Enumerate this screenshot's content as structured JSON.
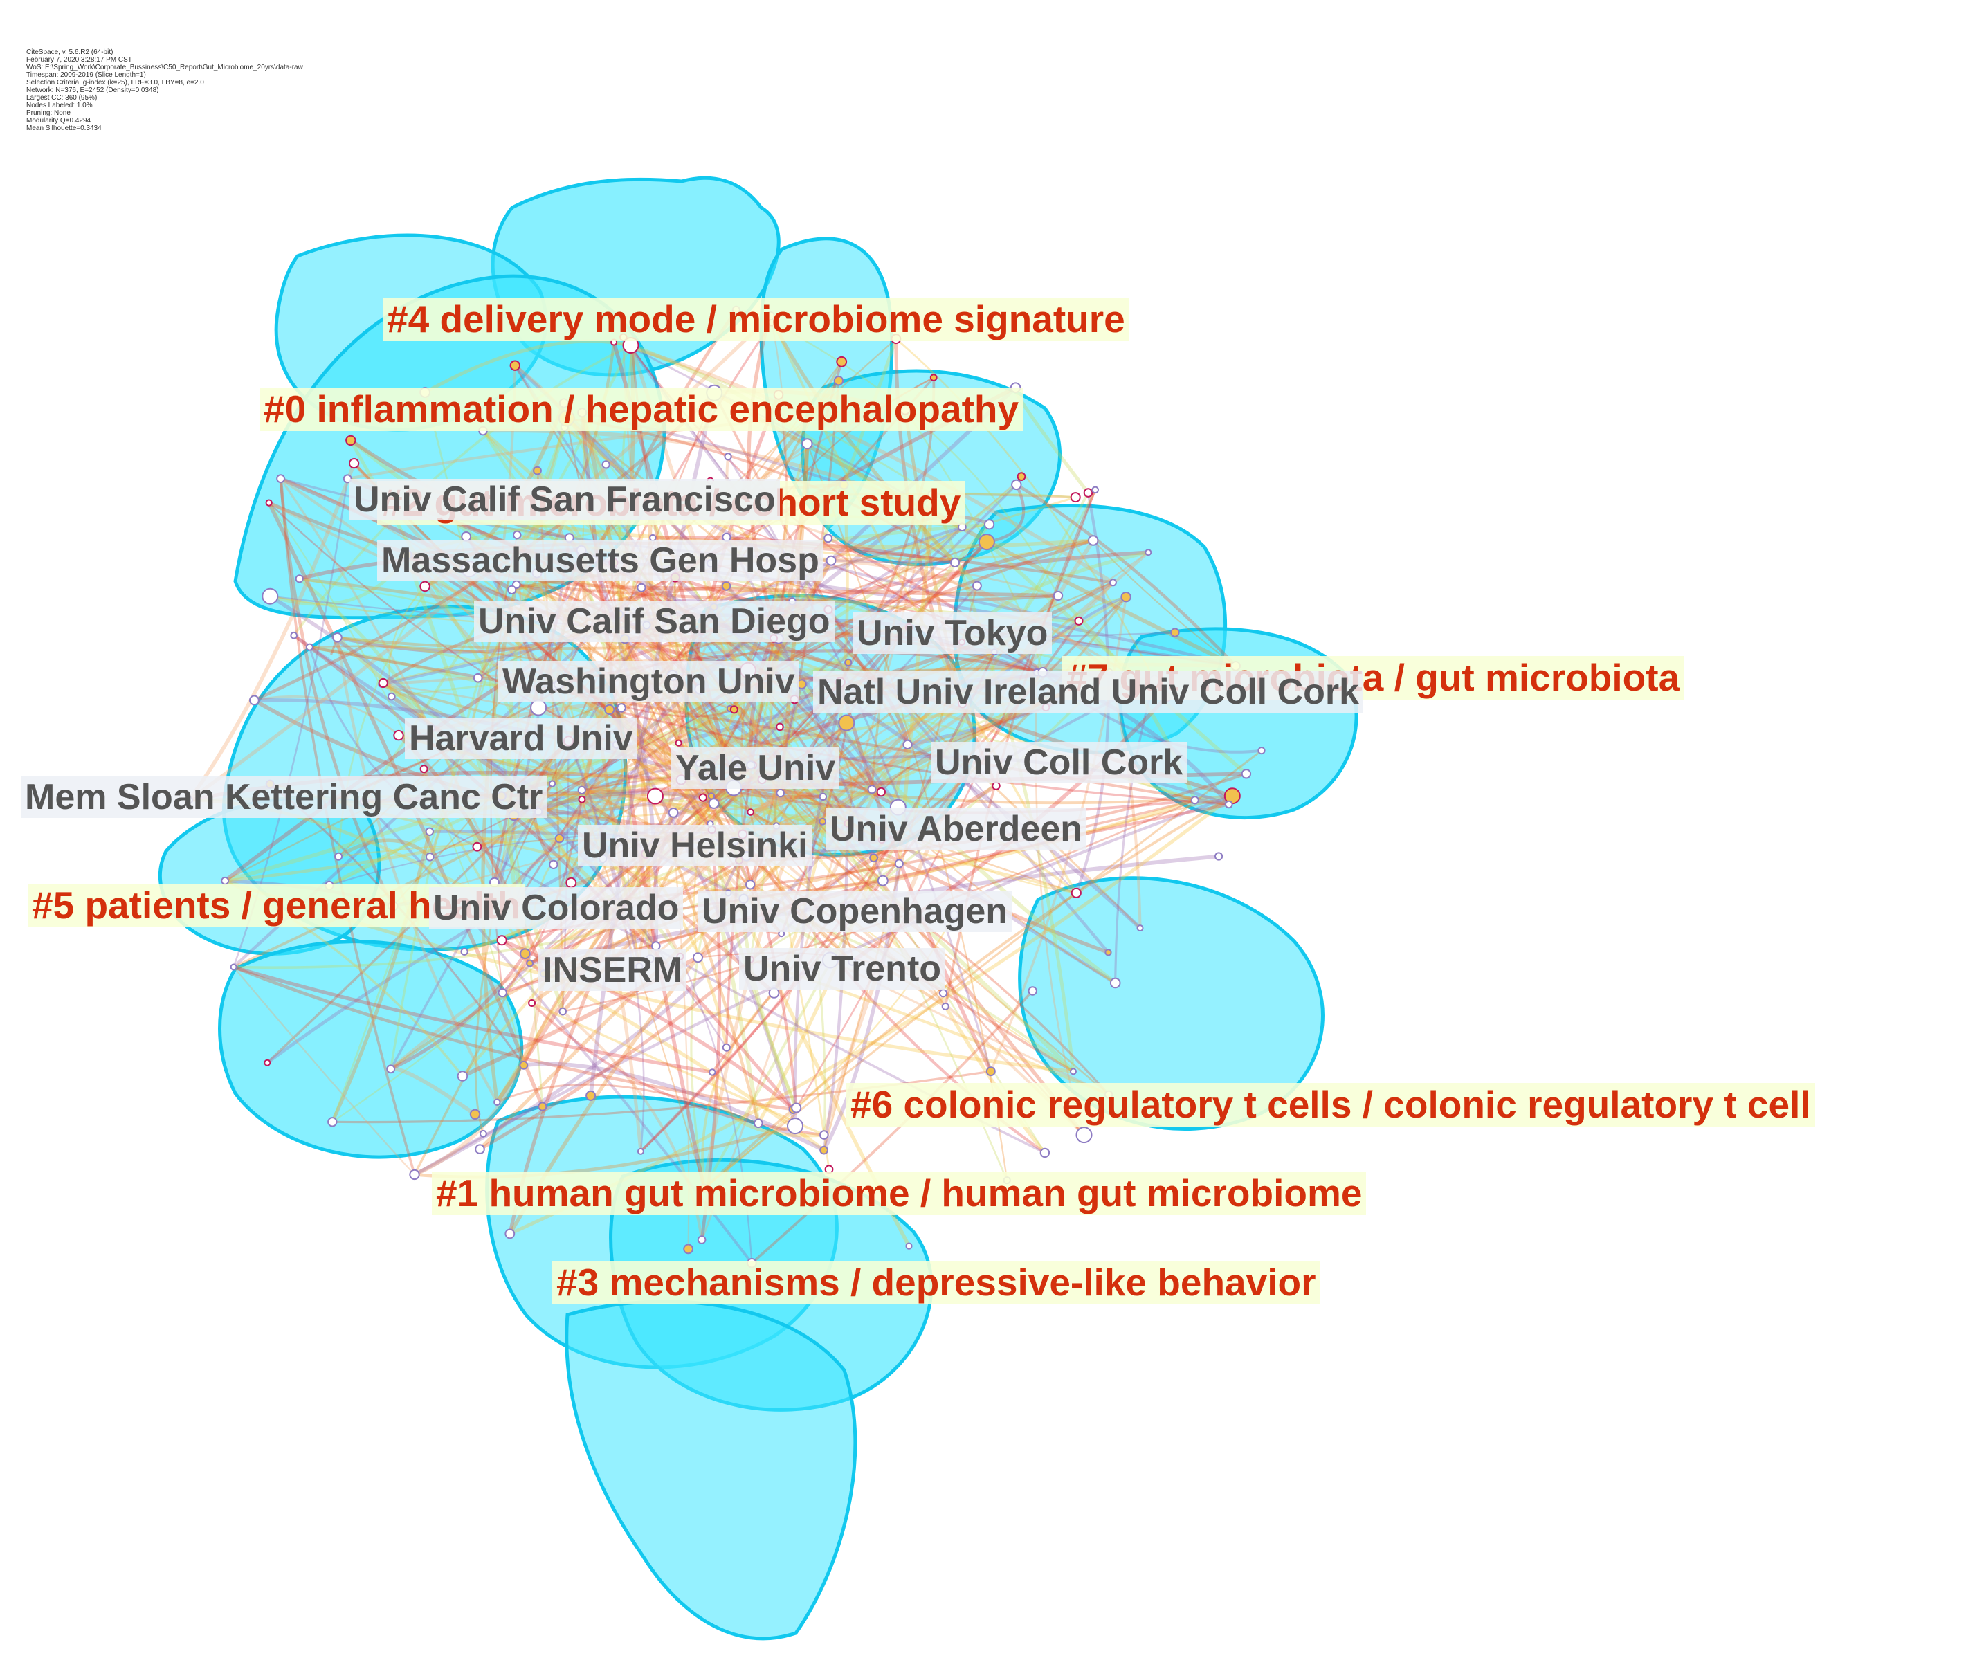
{
  "meta": [
    "CiteSpace, v. 5.6.R2 (64-bit)",
    "February 7, 2020 3:28:17 PM CST",
    "WoS: E:\\Spring_Work\\Corporate_Bussiness\\C50_Report\\Gut_Microbiome_20yrs\\data-raw",
    "Timespan: 2009-2019 (Slice Length=1)",
    "Selection Criteria: g-index (k=25), LRF=3.0, LBY=8, e=2.0",
    "Network: N=376, E=2452 (Density=0.0348)",
    "Largest CC: 360 (95%)",
    "Nodes Labeled: 1.0%",
    "Pruning: None",
    "Modularity Q=0.4294",
    "Mean Silhouette=0.3434"
  ],
  "clusters": [
    {
      "id": "4",
      "label": "#4 delivery mode / microbiome signature"
    },
    {
      "id": "0",
      "label": "#0 inflammation / hepatic encephalopathy"
    },
    {
      "id": "2",
      "label": "#2 gut microbiota / cohort study"
    },
    {
      "id": "7",
      "label": "#7 gut microbiota / gut microbiota"
    },
    {
      "id": "5",
      "label": "#5 patients / general health"
    },
    {
      "id": "6",
      "label": "#6 colonic regulatory t cells / colonic regulatory t cell"
    },
    {
      "id": "1",
      "label": "#1 human gut microbiome / human gut microbiome"
    },
    {
      "id": "3",
      "label": "#3 mechanisms / depressive-like behavior"
    }
  ],
  "institutions": [
    "Univ Calif San Francisco",
    "Massachusetts Gen Hosp",
    "Univ Calif San Diego",
    "Univ Tokyo",
    "Washington Univ",
    "Natl Univ Ireland Univ Coll Cork",
    "Harvard Univ",
    "Yale Univ",
    "Univ Coll Cork",
    "Mem Sloan Kettering Canc Ctr",
    "Univ Helsinki",
    "Univ Aberdeen",
    "Univ Colorado",
    "Univ Copenhagen",
    "INSERM",
    "Univ Trento"
  ],
  "colors": {
    "cluster_fill": "#3ee6ff",
    "cluster_stroke": "#12c8ee",
    "cluster_label": "#d4300c",
    "cluster_label_bg": "#f8ffd6",
    "institution_label": "#555555",
    "institution_bg": "#ecf0f6"
  }
}
